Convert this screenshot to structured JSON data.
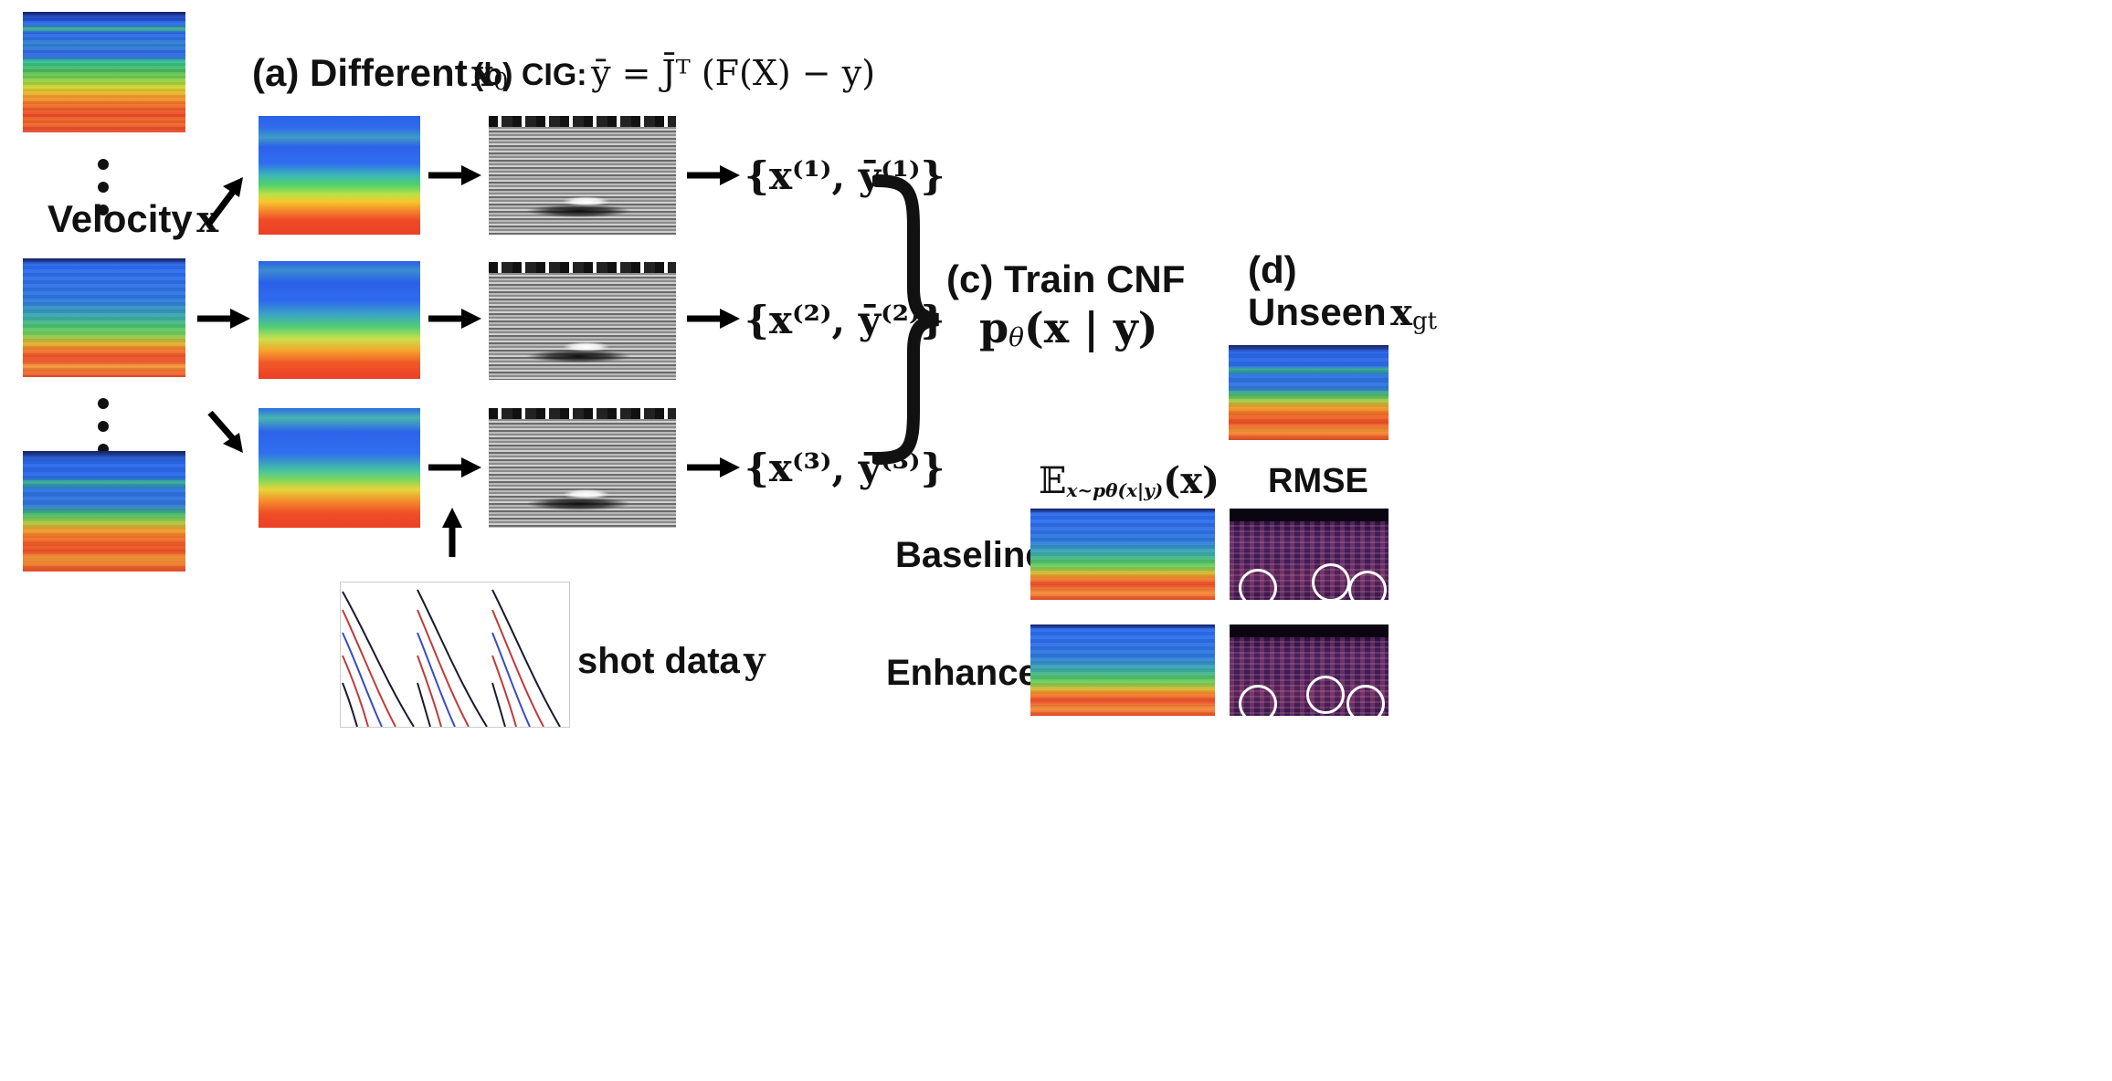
{
  "labels": {
    "velocity": "Velocity",
    "velocity_sym": "x",
    "a_title": "(a) Different",
    "a_sym": "x",
    "a_sub": "0",
    "b_title": "(b) CIG:",
    "b_formula": "ȳ = J̄ᵀ (F(X) − y)",
    "pair1": "{x⁽¹⁾, ȳ⁽¹⁾}",
    "pair2": "{x⁽²⁾, ȳ⁽²⁾}",
    "pair3": "{x⁽³⁾, ȳ⁽³⁾}",
    "c_title": "(c) Train CNF",
    "c_formula": "p",
    "c_theta": "θ",
    "c_formula_rest": "(x | y)",
    "d_title": "(d)",
    "d_unseen": "Unseen",
    "d_sym": "x",
    "d_sub": "gt",
    "expect_E": "𝔼",
    "expect_sub": "x~pθ(x|y)",
    "expect_rest": "(x)",
    "rmse": "RMSE",
    "baseline": "Baseline",
    "enhanced": "Enhanced",
    "shot": "shot data",
    "shot_sym": "y"
  }
}
